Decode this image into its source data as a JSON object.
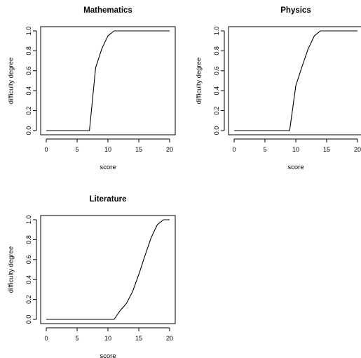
{
  "chart_data": [
    {
      "type": "line",
      "title": "Mathematics",
      "xlabel": "score",
      "ylabel": "difficulty degree",
      "xlim": [
        0,
        20
      ],
      "ylim": [
        0,
        1
      ],
      "xticks": [
        "0",
        "5",
        "10",
        "15",
        "20"
      ],
      "yticks": [
        "0.0",
        "0.2",
        "0.4",
        "0.6",
        "0.8",
        "1.0"
      ],
      "x": [
        0,
        1,
        2,
        3,
        4,
        5,
        6,
        7,
        8,
        9,
        10,
        11,
        12,
        13,
        14,
        15,
        16,
        17,
        18,
        19,
        20
      ],
      "y": [
        0,
        0,
        0,
        0,
        0,
        0,
        0,
        0,
        0.63,
        0.82,
        0.95,
        1,
        1,
        1,
        1,
        1,
        1,
        1,
        1,
        1,
        1
      ]
    },
    {
      "type": "line",
      "title": "Physics",
      "xlabel": "score",
      "ylabel": "difficulty degree",
      "xlim": [
        0,
        20
      ],
      "ylim": [
        0,
        1
      ],
      "xticks": [
        "0",
        "5",
        "10",
        "15",
        "20"
      ],
      "yticks": [
        "0.0",
        "0.2",
        "0.4",
        "0.6",
        "0.8",
        "1.0"
      ],
      "x": [
        0,
        1,
        2,
        3,
        4,
        5,
        6,
        7,
        8,
        9,
        10,
        11,
        12,
        13,
        14,
        15,
        16,
        17,
        18,
        19,
        20
      ],
      "y": [
        0,
        0,
        0,
        0,
        0,
        0,
        0,
        0,
        0,
        0,
        0.45,
        0.64,
        0.82,
        0.95,
        1,
        1,
        1,
        1,
        1,
        1,
        1
      ]
    },
    {
      "type": "line",
      "title": "Literature",
      "xlabel": "score",
      "ylabel": "difficulty degree",
      "xlim": [
        0,
        20
      ],
      "ylim": [
        0,
        1
      ],
      "xticks": [
        "0",
        "5",
        "10",
        "15",
        "20"
      ],
      "yticks": [
        "0.0",
        "0.2",
        "0.4",
        "0.6",
        "0.8",
        "1.0"
      ],
      "x": [
        0,
        1,
        2,
        3,
        4,
        5,
        6,
        7,
        8,
        9,
        10,
        11,
        12,
        13,
        14,
        15,
        16,
        17,
        18,
        19,
        20
      ],
      "y": [
        0,
        0,
        0,
        0,
        0,
        0,
        0,
        0,
        0,
        0,
        0,
        0,
        0.09,
        0.16,
        0.28,
        0.45,
        0.64,
        0.82,
        0.95,
        1,
        1
      ]
    }
  ]
}
